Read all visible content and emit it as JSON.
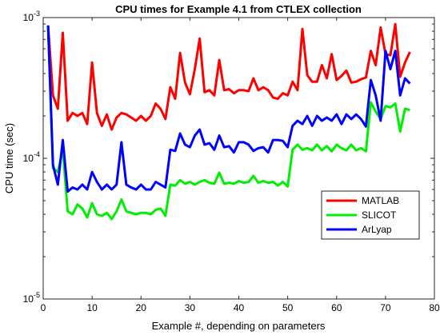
{
  "chart_data": {
    "type": "line",
    "title": "CPU times for Example 4.1 from CTLEX collection",
    "xlabel": "Example #, depending on parameters",
    "ylabel": "CPU time (sec)",
    "xlim": [
      0,
      80
    ],
    "ylim": [
      1e-05,
      0.001
    ],
    "yscale": "log",
    "xticks": [
      0,
      10,
      20,
      30,
      40,
      50,
      60,
      70,
      80
    ],
    "xtick_labels": [
      "0",
      "10",
      "20",
      "30",
      "40",
      "50",
      "60",
      "70",
      "80"
    ],
    "yticks": [
      1e-05,
      0.0001,
      0.001
    ],
    "ytick_labels": [
      {
        "base": "10",
        "exp": "-5"
      },
      {
        "base": "10",
        "exp": "-4"
      },
      {
        "base": "10",
        "exp": "-3"
      }
    ],
    "grid": false,
    "legend_position": "right",
    "x": [
      1,
      2,
      3,
      4,
      5,
      6,
      7,
      8,
      9,
      10,
      11,
      12,
      13,
      14,
      15,
      16,
      17,
      18,
      19,
      20,
      21,
      22,
      23,
      24,
      25,
      26,
      27,
      28,
      29,
      30,
      31,
      32,
      33,
      34,
      35,
      36,
      37,
      38,
      39,
      40,
      41,
      42,
      43,
      44,
      45,
      46,
      47,
      48,
      49,
      50,
      51,
      52,
      53,
      54,
      55,
      56,
      57,
      58,
      59,
      60,
      61,
      62,
      63,
      64,
      65,
      66,
      67,
      68,
      69,
      70,
      71,
      72,
      73,
      74,
      75
    ],
    "series": [
      {
        "name": "MATLAB",
        "color": "#ff0000",
        "values": [
          0.00088,
          0.00028,
          0.000225,
          0.00078,
          0.000185,
          0.00021,
          0.0002,
          0.00021,
          0.000175,
          0.00048,
          0.00021,
          0.00017,
          0.000205,
          0.00016,
          0.000195,
          0.00021,
          0.000205,
          0.000195,
          0.000185,
          0.0002,
          0.000185,
          0.0002,
          0.000245,
          0.000225,
          0.00019,
          0.00032,
          0.000265,
          0.00056,
          0.000345,
          0.000285,
          0.00043,
          0.00071,
          0.000295,
          0.000305,
          0.00028,
          0.0005,
          0.000305,
          0.00031,
          0.00029,
          0.000305,
          0.000305,
          0.0003,
          0.00037,
          0.000305,
          0.00032,
          0.000305,
          0.00027,
          0.000265,
          0.00029,
          0.00028,
          0.00035,
          0.000305,
          0.00083,
          0.00039,
          0.00035,
          0.00035,
          0.00046,
          0.00037,
          0.00055,
          0.00036,
          0.000385,
          0.00042,
          0.000345,
          0.00035,
          0.000365,
          0.000375,
          0.00058,
          0.00046,
          0.00085,
          0.00055,
          0.00054,
          0.0009,
          0.00038,
          0.00048,
          0.00057
        ]
      },
      {
        "name": "SLICOT",
        "color": "#00ee00",
        "values": [
          0.00088,
          8.5e-05,
          8e-05,
          0.000115,
          4.2e-05,
          4e-05,
          4.7e-05,
          4.4e-05,
          3.8e-05,
          4.8e-05,
          4e-05,
          3.9e-05,
          4.1e-05,
          3.7e-05,
          4.2e-05,
          5.1e-05,
          4.2e-05,
          4.1e-05,
          4e-05,
          4.1e-05,
          4.1e-05,
          4e-05,
          4.3e-05,
          4.4e-05,
          3.9e-05,
          6.5e-05,
          6.4e-05,
          7e-05,
          6.6e-05,
          6.8e-05,
          6.5e-05,
          6.8e-05,
          7e-05,
          6.7e-05,
          6.6e-05,
          7.9e-05,
          6.6e-05,
          6.7e-05,
          6.6e-05,
          6.9e-05,
          6.7e-05,
          6.8e-05,
          7.5e-05,
          6.7e-05,
          6.9e-05,
          6.7e-05,
          6.8e-05,
          6.4e-05,
          6.8e-05,
          6.3e-05,
          0.000115,
          0.000125,
          0.000115,
          0.000118,
          0.000114,
          0.000125,
          0.000114,
          0.000122,
          0.000112,
          0.000125,
          0.000118,
          0.000114,
          0.000125,
          0.000114,
          0.000118,
          0.000112,
          0.00025,
          0.000215,
          0.00019,
          0.000235,
          0.00023,
          0.000245,
          0.000155,
          0.000225,
          0.00022
        ]
      },
      {
        "name": "ArLyap",
        "color": "#0000ff",
        "values": [
          0.00088,
          9e-05,
          6.5e-05,
          0.000135,
          5.8e-05,
          6.2e-05,
          6e-05,
          6.5e-05,
          6e-05,
          8e-05,
          6.8e-05,
          6e-05,
          6.5e-05,
          6e-05,
          6.5e-05,
          0.00013,
          6.5e-05,
          6.2e-05,
          6e-05,
          6.5e-05,
          6e-05,
          6e-05,
          6.8e-05,
          6.5e-05,
          6.2e-05,
          0.000115,
          0.000113,
          0.00015,
          0.000125,
          0.00012,
          0.000145,
          0.00016,
          0.000125,
          0.000128,
          0.000115,
          0.000145,
          0.00012,
          0.000122,
          0.00011,
          0.00013,
          0.00013,
          0.000125,
          0.000113,
          0.000118,
          0.00012,
          0.00011,
          0.000135,
          0.000135,
          0.000133,
          0.00012,
          0.00017,
          0.000185,
          0.000175,
          0.0002,
          0.00017,
          0.0002,
          0.000185,
          0.000195,
          0.000185,
          0.000205,
          0.000175,
          0.000205,
          0.00019,
          0.000205,
          0.00019,
          0.000168,
          0.00036,
          0.00028,
          0.000185,
          0.00058,
          0.00043,
          0.00058,
          0.00028,
          0.00037,
          0.00034
        ]
      }
    ]
  }
}
